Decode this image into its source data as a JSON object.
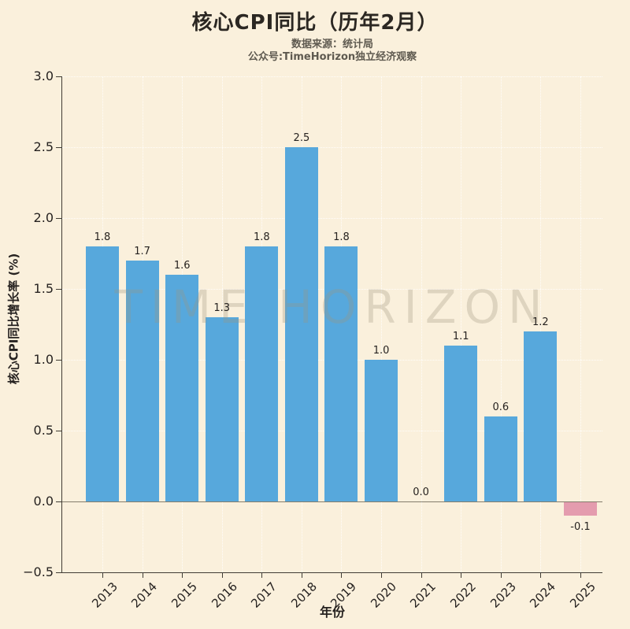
{
  "title": "核心CPI同比（历年2月）",
  "subtitle": {
    "line1": "数据来源：统计局",
    "line2": "公众号:TimeHorizon独立经济观察"
  },
  "watermark": "TIME HORIZON",
  "chart_data": {
    "type": "bar",
    "title": "核心CPI同比（历年2月）",
    "categories": [
      "2013",
      "2014",
      "2015",
      "2016",
      "2017",
      "2018",
      "2019",
      "2020",
      "2021",
      "2022",
      "2023",
      "2024",
      "2025"
    ],
    "values": [
      1.8,
      1.7,
      1.6,
      1.3,
      1.8,
      2.5,
      1.8,
      1.0,
      0.0,
      1.1,
      0.6,
      1.2,
      -0.1
    ],
    "bar_labels": [
      "1.8",
      "1.7",
      "1.6",
      "1.3",
      "1.8",
      "2.5",
      "1.8",
      "1.0",
      "0.0",
      "1.1",
      "0.6",
      "1.2",
      "-0.1"
    ],
    "xlabel": "年份",
    "ylabel": "核心CPI同比增长率 (%)",
    "ylim": [
      -0.5,
      3.0
    ],
    "yticks": [
      "3.0",
      "2.5",
      "2.0",
      "1.5",
      "1.0",
      "0.5",
      "0.0",
      "−0.5"
    ],
    "grid": true,
    "legend": false,
    "colors": {
      "positive_bar": "#57A8DC",
      "negative_bar": "#E49CAE",
      "background": "#FAF0DC",
      "grid": "#FFFFFF",
      "text": "#262220"
    }
  }
}
